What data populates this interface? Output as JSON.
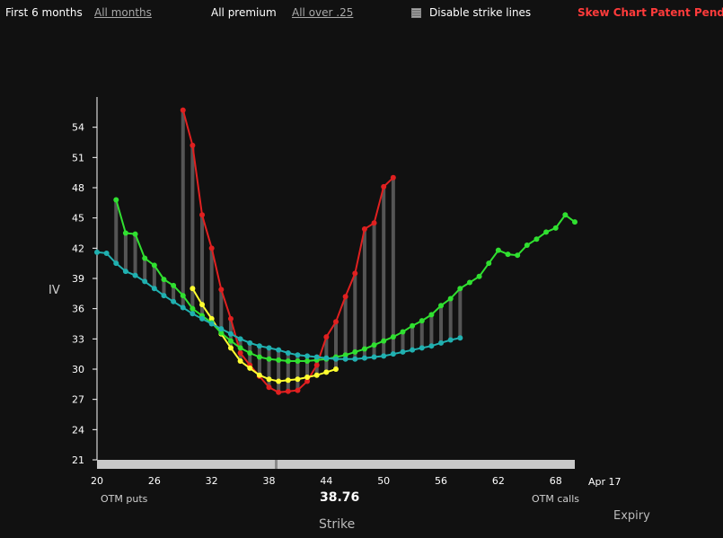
{
  "toolbar": {
    "range_selected": "First 6 months",
    "range_alt": "All months",
    "premium_selected": "All premium",
    "premium_alt": "All over .25",
    "strike_lines_label": "Disable strike lines",
    "patent": "Skew Chart Patent Pending!"
  },
  "chart_data": {
    "type": "line",
    "ylabel": "IV",
    "xlabel": "Strike",
    "xlim": [
      20,
      70
    ],
    "ylim": [
      21,
      57
    ],
    "y_ticks": [
      "21",
      "24",
      "27",
      "30",
      "33",
      "36",
      "39",
      "42",
      "45",
      "48",
      "51",
      "54"
    ],
    "x_ticks": [
      "20",
      "26",
      "32",
      "38",
      "44",
      "50",
      "56",
      "62",
      "68"
    ],
    "slider_value": "38.76",
    "otm_puts": "OTM puts",
    "otm_calls": "OTM calls",
    "expiry_label": "Expiry",
    "expiry_value": "Apr 17",
    "series": [
      {
        "color": "#e02020",
        "points": [
          [
            29,
            55.7
          ],
          [
            30,
            52.2
          ],
          [
            31,
            45.3
          ],
          [
            32,
            42
          ],
          [
            33,
            37.9
          ],
          [
            34,
            35
          ],
          [
            35,
            31.6
          ],
          [
            36,
            30.4
          ],
          [
            37,
            29.3
          ],
          [
            38,
            28.2
          ],
          [
            39,
            27.7
          ],
          [
            40,
            27.8
          ],
          [
            41,
            27.9
          ],
          [
            42,
            28.8
          ],
          [
            43,
            30.4
          ],
          [
            44,
            33.2
          ],
          [
            45,
            34.7
          ],
          [
            46,
            37.2
          ],
          [
            47,
            39.5
          ],
          [
            48,
            43.9
          ],
          [
            49,
            44.5
          ],
          [
            50,
            48.1
          ],
          [
            51,
            49
          ]
        ]
      },
      {
        "color": "#ffff30",
        "points": [
          [
            30,
            38
          ],
          [
            31,
            36.4
          ],
          [
            32,
            35.0
          ],
          [
            33,
            33.5
          ],
          [
            34,
            32.1
          ],
          [
            35,
            30.8
          ],
          [
            36,
            30.1
          ],
          [
            37,
            29.4
          ],
          [
            38,
            29.0
          ],
          [
            39,
            28.8
          ],
          [
            40,
            28.9
          ],
          [
            41,
            29.0
          ],
          [
            42,
            29.2
          ],
          [
            43,
            29.4
          ],
          [
            44,
            29.7
          ],
          [
            45,
            30.0
          ]
        ]
      },
      {
        "color": "#30e030",
        "points": [
          [
            22,
            46.8
          ],
          [
            23,
            43.5
          ],
          [
            24,
            43.4
          ],
          [
            25,
            41
          ],
          [
            26,
            40.3
          ],
          [
            27,
            38.9
          ],
          [
            28,
            38.3
          ],
          [
            29,
            37.3
          ],
          [
            30,
            36
          ],
          [
            31,
            35.3
          ],
          [
            32,
            34.6
          ],
          [
            33,
            33.6
          ],
          [
            34,
            32.8
          ],
          [
            35,
            32.1
          ],
          [
            36,
            31.6
          ],
          [
            37,
            31.2
          ],
          [
            38,
            31.0
          ],
          [
            39,
            30.9
          ],
          [
            40,
            30.8
          ],
          [
            41,
            30.8
          ],
          [
            42,
            30.8
          ],
          [
            43,
            30.9
          ],
          [
            44,
            31.0
          ],
          [
            45,
            31.2
          ],
          [
            46,
            31.4
          ],
          [
            47,
            31.7
          ],
          [
            48,
            32.0
          ],
          [
            49,
            32.4
          ],
          [
            50,
            32.8
          ],
          [
            51,
            33.2
          ],
          [
            52,
            33.7
          ],
          [
            53,
            34.3
          ],
          [
            54,
            34.8
          ],
          [
            55,
            35.4
          ],
          [
            56,
            36.3
          ],
          [
            57,
            37.0
          ],
          [
            58,
            38.0
          ],
          [
            59,
            38.6
          ],
          [
            60,
            39.2
          ],
          [
            61,
            40.5
          ],
          [
            62,
            41.8
          ],
          [
            63,
            41.4
          ],
          [
            64,
            41.3
          ],
          [
            65,
            42.3
          ],
          [
            66,
            42.9
          ],
          [
            67,
            43.6
          ],
          [
            68,
            44.0
          ],
          [
            69,
            45.3
          ],
          [
            70,
            44.6
          ]
        ]
      },
      {
        "color": "#20b0b0",
        "points": [
          [
            20,
            41.6
          ],
          [
            21,
            41.5
          ],
          [
            22,
            40.5
          ],
          [
            23,
            39.7
          ],
          [
            24,
            39.3
          ],
          [
            25,
            38.7
          ],
          [
            26,
            38.0
          ],
          [
            27,
            37.3
          ],
          [
            28,
            36.7
          ],
          [
            29,
            36.1
          ],
          [
            30,
            35.5
          ],
          [
            31,
            35.0
          ],
          [
            32,
            34.5
          ],
          [
            33,
            34.0
          ],
          [
            34,
            33.5
          ],
          [
            35,
            33.0
          ],
          [
            36,
            32.6
          ],
          [
            37,
            32.3
          ],
          [
            38,
            32.1
          ],
          [
            39,
            31.9
          ],
          [
            40,
            31.6
          ],
          [
            41,
            31.4
          ],
          [
            42,
            31.3
          ],
          [
            43,
            31.2
          ],
          [
            44,
            31.1
          ],
          [
            45,
            31.0
          ],
          [
            46,
            31.0
          ],
          [
            47,
            31.0
          ],
          [
            48,
            31.1
          ],
          [
            49,
            31.2
          ],
          [
            50,
            31.3
          ],
          [
            51,
            31.5
          ],
          [
            52,
            31.7
          ],
          [
            53,
            31.9
          ],
          [
            54,
            32.1
          ],
          [
            55,
            32.3
          ],
          [
            56,
            32.6
          ],
          [
            57,
            32.9
          ],
          [
            58,
            33.1
          ]
        ]
      }
    ]
  }
}
